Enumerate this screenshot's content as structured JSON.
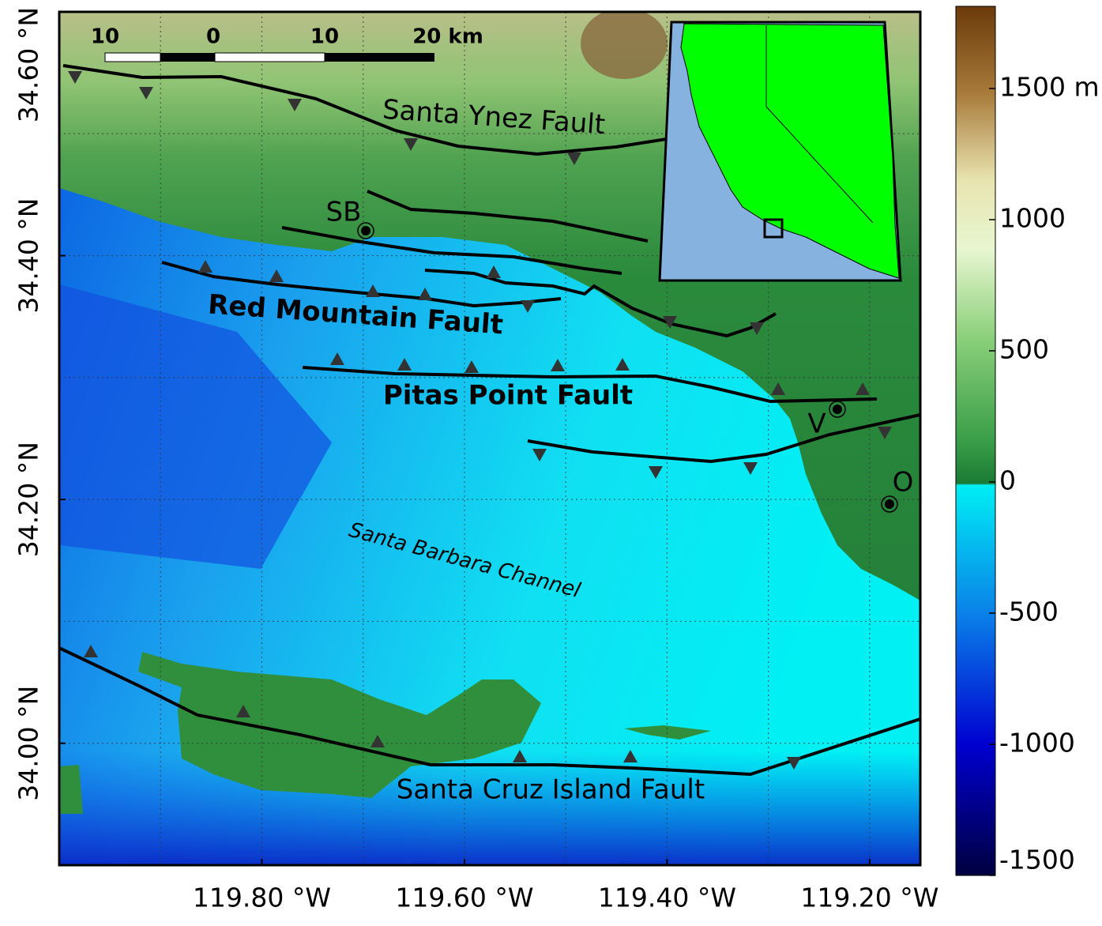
{
  "map": {
    "xlim": [
      120.0,
      119.15
    ],
    "ylim": [
      33.9,
      34.6
    ],
    "xticks": [
      {
        "value": 119.8,
        "label": "119.80 °W"
      },
      {
        "value": 119.6,
        "label": "119.60 °W"
      },
      {
        "value": 119.4,
        "label": "119.40 °W"
      },
      {
        "value": 119.2,
        "label": "119.20 °W"
      }
    ],
    "yticks": [
      {
        "value": 34.6,
        "label": "34.60 °N"
      },
      {
        "value": 34.4,
        "label": "34.40 °N"
      },
      {
        "value": 34.2,
        "label": "34.20 °N"
      },
      {
        "value": 34.0,
        "label": "34.00 °N"
      }
    ],
    "xminor": [
      119.9,
      119.7,
      119.5,
      119.3
    ],
    "yminor": [
      34.5,
      34.3,
      34.1
    ],
    "grid": true
  },
  "labels": {
    "santa_ynez": "Santa Ynez Fault",
    "red_mountain": "Red Mountain Fault",
    "pitas_point": "Pitas Point Fault",
    "channel": "Santa Barbara Channel",
    "santa_cruz": "Santa Cruz Island Fault"
  },
  "places": [
    {
      "label": "SB"
    },
    {
      "label": "V"
    },
    {
      "label": "O"
    }
  ],
  "scale_bar": [
    "10",
    "0",
    "10",
    "20 km"
  ],
  "colorbar": {
    "ticks": [
      {
        "value": 1500,
        "label": "1500 m"
      },
      1000,
      500,
      0,
      -500,
      -1000,
      -1500
    ]
  }
}
